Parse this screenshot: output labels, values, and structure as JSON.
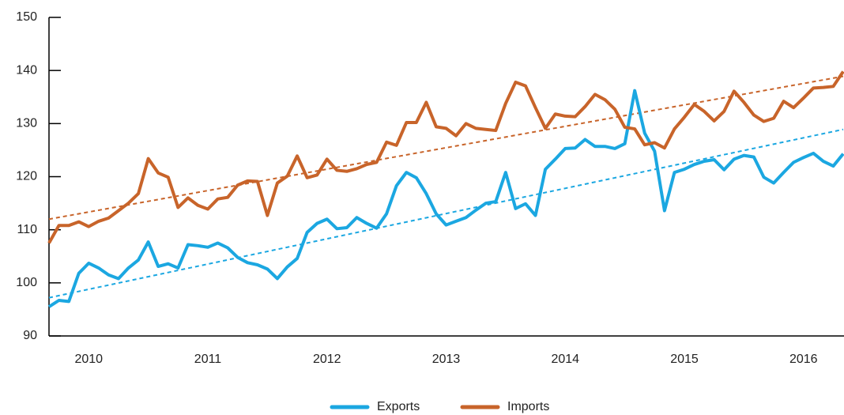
{
  "chart_data": {
    "type": "line",
    "categories": [
      null,
      null,
      null,
      null,
      "2010",
      null,
      null,
      null,
      null,
      null,
      null,
      null,
      null,
      null,
      null,
      null,
      "2011",
      null,
      null,
      null,
      null,
      null,
      null,
      null,
      null,
      null,
      null,
      null,
      "2012",
      null,
      null,
      null,
      null,
      null,
      null,
      null,
      null,
      null,
      null,
      null,
      "2013",
      null,
      null,
      null,
      null,
      null,
      null,
      null,
      null,
      null,
      null,
      null,
      "2014",
      null,
      null,
      null,
      null,
      null,
      null,
      null,
      null,
      null,
      null,
      null,
      "2015",
      null,
      null,
      null,
      null,
      null,
      null,
      null,
      null,
      null,
      null,
      null,
      "2016",
      null,
      null,
      null,
      null
    ],
    "series": [
      {
        "name": "Exports",
        "color": "#1ba7e1",
        "values": [
          95.5,
          96.7,
          96.5,
          101.8,
          103.7,
          102.8,
          101.5,
          100.8,
          102.8,
          104.3,
          107.7,
          103.1,
          103.6,
          102.8,
          107.2,
          107.0,
          106.7,
          107.5,
          106.6,
          104.8,
          103.8,
          103.4,
          102.6,
          100.8,
          103.0,
          104.6,
          109.5,
          111.2,
          112.0,
          110.2,
          110.4,
          112.3,
          111.2,
          110.3,
          113.0,
          118.3,
          120.8,
          119.8,
          116.8,
          113.0,
          110.9,
          111.6,
          112.3,
          113.7,
          115.0,
          115.3,
          120.8,
          114.0,
          114.9,
          112.7,
          121.4,
          123.3,
          125.3,
          125.4,
          127.0,
          125.7,
          125.7,
          125.3,
          126.2,
          136.2,
          128.2,
          124.8,
          113.6,
          120.8,
          121.4,
          122.3,
          122.9,
          123.2,
          121.3,
          123.3,
          124.0,
          123.7,
          119.9,
          118.8,
          120.8,
          122.7,
          123.6,
          124.4,
          122.9,
          122.0,
          124.3
        ],
        "trend": [
          97.2,
          128.9
        ]
      },
      {
        "name": "Imports",
        "color": "#c8642a",
        "values": [
          107.5,
          110.8,
          110.8,
          111.5,
          110.6,
          111.6,
          112.2,
          113.6,
          115.0,
          116.8,
          123.4,
          120.7,
          119.9,
          114.2,
          116.0,
          114.6,
          113.9,
          115.8,
          116.1,
          118.4,
          119.2,
          119.1,
          112.7,
          118.8,
          120.1,
          123.9,
          119.8,
          120.3,
          123.3,
          121.2,
          121.0,
          121.5,
          122.3,
          122.7,
          126.5,
          125.9,
          130.2,
          130.2,
          134.0,
          129.4,
          129.1,
          127.7,
          130.0,
          129.1,
          128.9,
          128.7,
          133.8,
          137.8,
          137.1,
          133.0,
          129.1,
          131.8,
          131.4,
          131.3,
          133.2,
          135.5,
          134.5,
          132.7,
          129.3,
          129.0,
          126.0,
          126.4,
          125.4,
          129.0,
          131.2,
          133.6,
          132.3,
          130.5,
          132.3,
          136.1,
          134.0,
          131.6,
          130.4,
          131.0,
          134.2,
          133.0,
          134.8,
          136.7,
          136.8,
          137.0,
          139.8
        ],
        "trend": [
          112.0,
          138.9
        ]
      }
    ],
    "ylim": [
      90,
      150
    ],
    "yticks": [
      90,
      100,
      110,
      120,
      130,
      140,
      150
    ],
    "legend": "bottom"
  }
}
